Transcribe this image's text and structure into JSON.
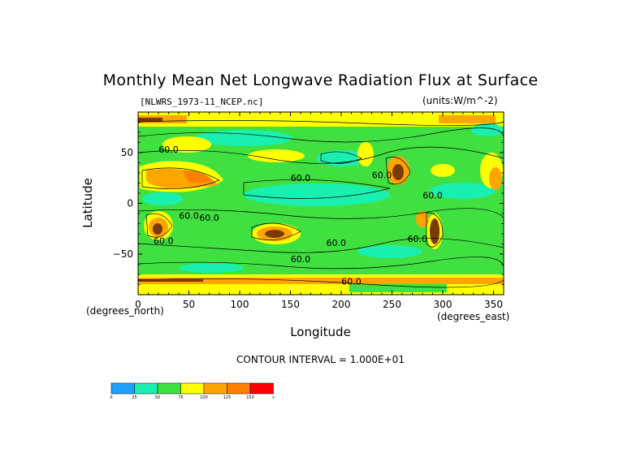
{
  "chart_data": {
    "type": "heatmap",
    "title": "Monthly Mean Net Longwave Radiation Flux at Surface",
    "file_label": "[NLWRS_1973-11_NCEP.nc]",
    "units_label": "(units:W/m^-2)",
    "xlabel": "Longitude",
    "ylabel": "Latitude",
    "x_units_left": "(degrees_north)",
    "x_units_right": "(degrees_east)",
    "xlim": [
      0,
      360
    ],
    "ylim": [
      -90,
      90
    ],
    "x_ticks": [
      "0",
      "50",
      "100",
      "150",
      "200",
      "250",
      "300",
      "350"
    ],
    "y_ticks": [
      "50",
      "0",
      "−50"
    ],
    "contour_interval_text": "CONTOUR INTERVAL = 1.000E+01",
    "contour_labels": [
      "60.0",
      "60.0",
      "60.0",
      "60.0",
      "60.0",
      "60.0",
      "60.0",
      "60.0",
      "60.0",
      "60.0",
      "60.0"
    ],
    "colorbar": {
      "colors": [
        "#1fa0ff",
        "#19f0b0",
        "#40e040",
        "#ffff00",
        "#ffa500",
        "#ff7f00",
        "#ff0000"
      ],
      "labels": [
        "0",
        "25",
        "50",
        "75",
        "100",
        "125",
        "150",
        "∞"
      ]
    }
  }
}
